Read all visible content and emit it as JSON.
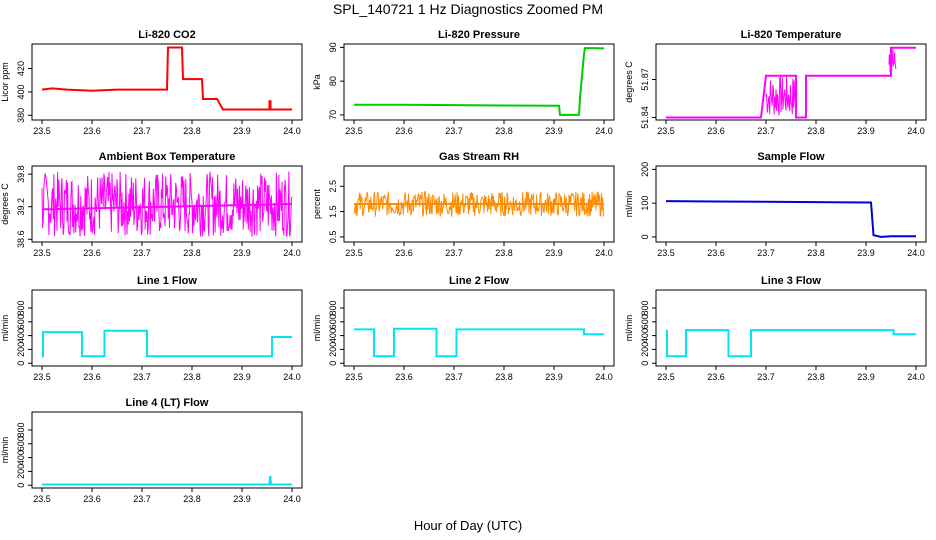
{
  "title": "SPL_140721  1 Hz Diagnostics Zoomed PM",
  "xlabel": "Hour of Day (UTC)",
  "chart_data": [
    {
      "type": "line",
      "title": "Li-820 CO2",
      "ylabel": "Licor ppm",
      "xlim": [
        23.5,
        24.0
      ],
      "xticks": [
        "23.5",
        "23.6",
        "23.7",
        "23.8",
        "23.9",
        "24.0"
      ],
      "ylim": [
        376,
        441
      ],
      "yticks": [
        380,
        400,
        420
      ],
      "color": "#ff0000",
      "series": [
        {
          "x": [
            23.5,
            23.52,
            23.55,
            23.6,
            23.65,
            23.7,
            23.75,
            23.752,
            23.78,
            23.782,
            23.8,
            23.82,
            23.822,
            23.84,
            23.85,
            23.862,
            23.9,
            23.92,
            23.94,
            23.955,
            23.955,
            23.957,
            23.957,
            23.96,
            23.98,
            24.0
          ],
          "y": [
            402,
            403,
            402,
            401,
            402,
            402,
            402,
            438,
            438,
            411,
            411,
            411,
            394,
            394,
            394,
            385,
            385,
            385,
            385,
            385,
            392,
            392,
            385,
            385,
            385,
            385
          ]
        }
      ]
    },
    {
      "type": "line",
      "title": "Li-820 Pressure",
      "ylabel": "kPa",
      "xlim": [
        23.5,
        24.0
      ],
      "xticks": [
        "23.5",
        "23.6",
        "23.7",
        "23.8",
        "23.9",
        "24.0"
      ],
      "ylim": [
        68.5,
        91
      ],
      "yticks": [
        70,
        80,
        90
      ],
      "color": "#00cc00",
      "series": [
        {
          "x": [
            23.5,
            23.6,
            23.7,
            23.8,
            23.9,
            23.91,
            23.912,
            23.95,
            23.952,
            23.955,
            23.96,
            23.962,
            23.98,
            24.0
          ],
          "y": [
            73,
            73,
            72.9,
            72.8,
            72.7,
            72.7,
            70,
            70,
            75,
            80,
            88,
            89.8,
            89.8,
            89.7
          ]
        }
      ]
    },
    {
      "type": "line",
      "title": "Li-820 Temperature",
      "ylabel": "degrees C",
      "xlim": [
        23.5,
        24.0
      ],
      "xticks": [
        "23.5",
        "23.6",
        "23.7",
        "23.8",
        "23.9",
        "24.0"
      ],
      "ylim": [
        51.838,
        51.898
      ],
      "yticks": [
        51.84,
        51.87
      ],
      "ytick_labels": [
        "51.84",
        "51.87"
      ],
      "ytick_extra": "51.87",
      "color": "#ff00ff",
      "series": [
        {
          "x": [
            23.5,
            23.6,
            23.69,
            23.7,
            23.75,
            23.76,
            23.76,
            23.78,
            23.78,
            23.95,
            23.95,
            23.96,
            23.96,
            24.0
          ],
          "y": [
            51.84,
            51.84,
            51.84,
            51.873,
            51.873,
            51.873,
            51.84,
            51.84,
            51.873,
            51.873,
            51.895,
            51.895,
            51.895,
            51.895
          ]
        }
      ],
      "noise_bands": [
        {
          "x0": 23.7,
          "x1": 23.76,
          "lo": 51.84,
          "hi": 51.873
        },
        {
          "x0": 23.946,
          "x1": 23.96,
          "lo": 51.873,
          "hi": 51.895
        }
      ]
    },
    {
      "type": "line",
      "title": "Ambient Box Temperature",
      "ylabel": "degrees C",
      "xlim": [
        23.5,
        24.0
      ],
      "xticks": [
        "23.5",
        "23.6",
        "23.7",
        "23.8",
        "23.9",
        "24.0"
      ],
      "ylim": [
        38.55,
        39.95
      ],
      "yticks": [
        38.6,
        39.2,
        39.8
      ],
      "ytick_labels": [
        "38.6",
        "39.2",
        "39.8"
      ],
      "color": "#ff00ff",
      "series": [
        {
          "x": [
            23.5,
            24.0
          ],
          "y": [
            39.15,
            39.25
          ]
        }
      ],
      "noise_bands": [
        {
          "x0": 23.5,
          "x1": 24.0,
          "lo": 38.65,
          "hi": 39.85
        }
      ]
    },
    {
      "type": "line",
      "title": "Gas Stream RH",
      "ylabel": "percent",
      "xlim": [
        23.5,
        24.0
      ],
      "xticks": [
        "23.5",
        "23.6",
        "23.7",
        "23.8",
        "23.9",
        "24.0"
      ],
      "ylim": [
        0.3,
        3.3
      ],
      "yticks": [
        0.5,
        1.5,
        2.5
      ],
      "color": "#ff8c00",
      "series": [
        {
          "x": [
            23.5,
            24.0
          ],
          "y": [
            1.8,
            1.8
          ]
        }
      ],
      "noise_bands": [
        {
          "x0": 23.5,
          "x1": 24.0,
          "lo": 1.3,
          "hi": 2.3
        }
      ]
    },
    {
      "type": "line",
      "title": "Sample Flow",
      "ylabel": "ml/min",
      "xlim": [
        23.5,
        24.0
      ],
      "xticks": [
        "23.5",
        "23.6",
        "23.7",
        "23.8",
        "23.9",
        "24.0"
      ],
      "ylim": [
        -15,
        210
      ],
      "yticks": [
        0,
        100,
        200
      ],
      "color": "#0000dd",
      "series": [
        {
          "x": [
            23.5,
            23.6,
            23.7,
            23.8,
            23.9,
            23.91,
            23.915,
            23.93,
            23.95,
            24.0
          ],
          "y": [
            106,
            105,
            104,
            103,
            102,
            102,
            5,
            0,
            2,
            2
          ]
        }
      ]
    },
    {
      "type": "line",
      "title": "Line 1 Flow",
      "ylabel": "ml/min",
      "xlim": [
        23.5,
        24.0
      ],
      "xticks": [
        "23.5",
        "23.6",
        "23.7",
        "23.8",
        "23.9",
        "24.0"
      ],
      "ylim": [
        -40,
        1060
      ],
      "yticks": [
        0,
        200,
        400,
        600,
        800
      ],
      "color": "#00e5ee",
      "series": [
        {
          "x": [
            23.5,
            23.502,
            23.502,
            23.58,
            23.58,
            23.625,
            23.625,
            23.71,
            23.71,
            23.96,
            23.96,
            24.0
          ],
          "y": [
            100,
            100,
            450,
            450,
            100,
            100,
            470,
            470,
            100,
            100,
            380,
            380
          ]
        }
      ]
    },
    {
      "type": "line",
      "title": "Line 2 Flow",
      "ylabel": "ml/min",
      "xlim": [
        23.5,
        24.0
      ],
      "xticks": [
        "23.5",
        "23.6",
        "23.7",
        "23.8",
        "23.9",
        "24.0"
      ],
      "ylim": [
        -40,
        1060
      ],
      "yticks": [
        0,
        200,
        400,
        600,
        800
      ],
      "color": "#00e5ee",
      "series": [
        {
          "x": [
            23.5,
            23.54,
            23.54,
            23.58,
            23.58,
            23.665,
            23.665,
            23.705,
            23.705,
            23.96,
            23.96,
            24.0
          ],
          "y": [
            490,
            490,
            100,
            100,
            500,
            500,
            100,
            100,
            490,
            490,
            420,
            420
          ]
        }
      ]
    },
    {
      "type": "line",
      "title": "Line 3 Flow",
      "ylabel": "ml/min",
      "xlim": [
        23.5,
        24.0
      ],
      "xticks": [
        "23.5",
        "23.6",
        "23.7",
        "23.8",
        "23.9",
        "24.0"
      ],
      "ylim": [
        -40,
        1060
      ],
      "yticks": [
        0,
        200,
        400,
        600,
        800
      ],
      "color": "#00e5ee",
      "series": [
        {
          "x": [
            23.5,
            23.502,
            23.502,
            23.54,
            23.54,
            23.625,
            23.625,
            23.67,
            23.67,
            23.955,
            23.955,
            24.0
          ],
          "y": [
            470,
            470,
            100,
            100,
            480,
            480,
            100,
            100,
            480,
            480,
            420,
            420
          ]
        }
      ]
    },
    {
      "type": "line",
      "title": "Line 4 (LT) Flow",
      "ylabel": "ml/min",
      "xlim": [
        23.5,
        24.0
      ],
      "xticks": [
        "23.5",
        "23.6",
        "23.7",
        "23.8",
        "23.9",
        "24.0"
      ],
      "ylim": [
        -40,
        1060
      ],
      "yticks": [
        0,
        200,
        400,
        600,
        800
      ],
      "color": "#00e5ee",
      "series": [
        {
          "x": [
            23.5,
            23.955,
            23.956,
            23.957,
            23.958,
            24.0
          ],
          "y": [
            10,
            10,
            120,
            120,
            10,
            10
          ]
        }
      ]
    }
  ]
}
